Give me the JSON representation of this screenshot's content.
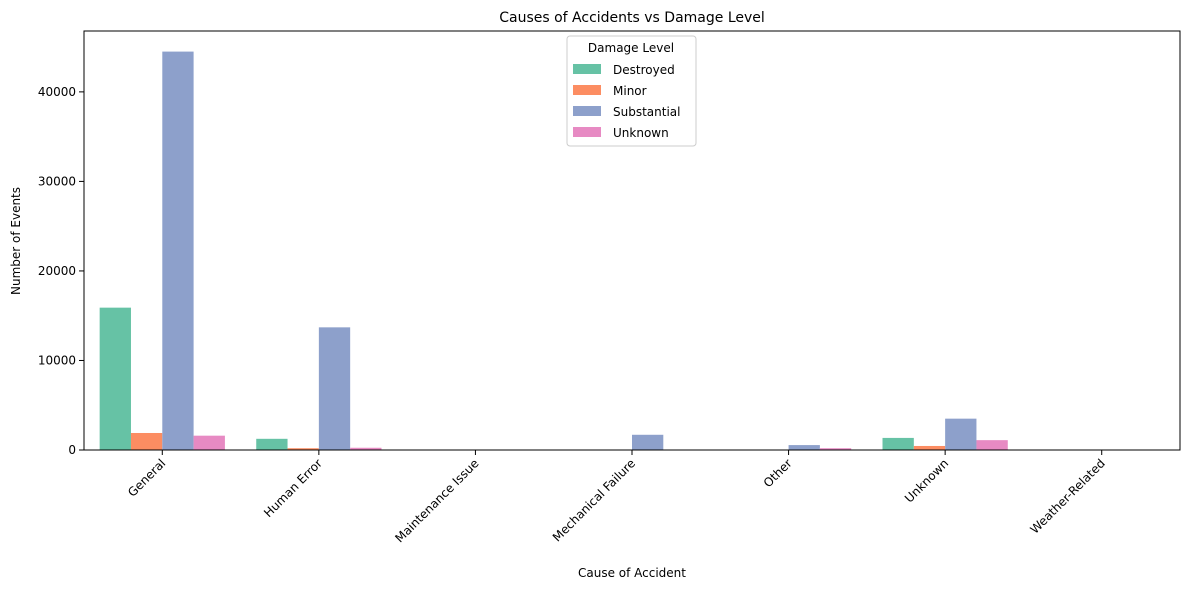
{
  "chart_data": {
    "type": "bar",
    "title": "Causes of Accidents vs Damage Level",
    "xlabel": "Cause of Accident",
    "ylabel": "Number of Events",
    "categories": [
      "General",
      "Human Error",
      "Maintenance Issue",
      "Mechanical Failure",
      "Other",
      "Unknown",
      "Weather-Related"
    ],
    "series": [
      {
        "name": "Destroyed",
        "color": "#66c2a5",
        "values": [
          15900,
          1250,
          0,
          0,
          0,
          1350,
          0
        ]
      },
      {
        "name": "Minor",
        "color": "#fc8d62",
        "values": [
          1900,
          200,
          0,
          0,
          0,
          450,
          0
        ]
      },
      {
        "name": "Substantial",
        "color": "#8da0cb",
        "values": [
          44500,
          13700,
          0,
          1700,
          550,
          3500,
          0
        ]
      },
      {
        "name": "Unknown",
        "color": "#e78ac3",
        "values": [
          1600,
          250,
          0,
          0,
          200,
          1100,
          0
        ]
      }
    ],
    "ylim": [
      0,
      46800
    ],
    "yticks": [
      0,
      10000,
      20000,
      30000,
      40000
    ],
    "grid": false,
    "legend": {
      "title": "Damage Level",
      "position": "top-center"
    }
  }
}
